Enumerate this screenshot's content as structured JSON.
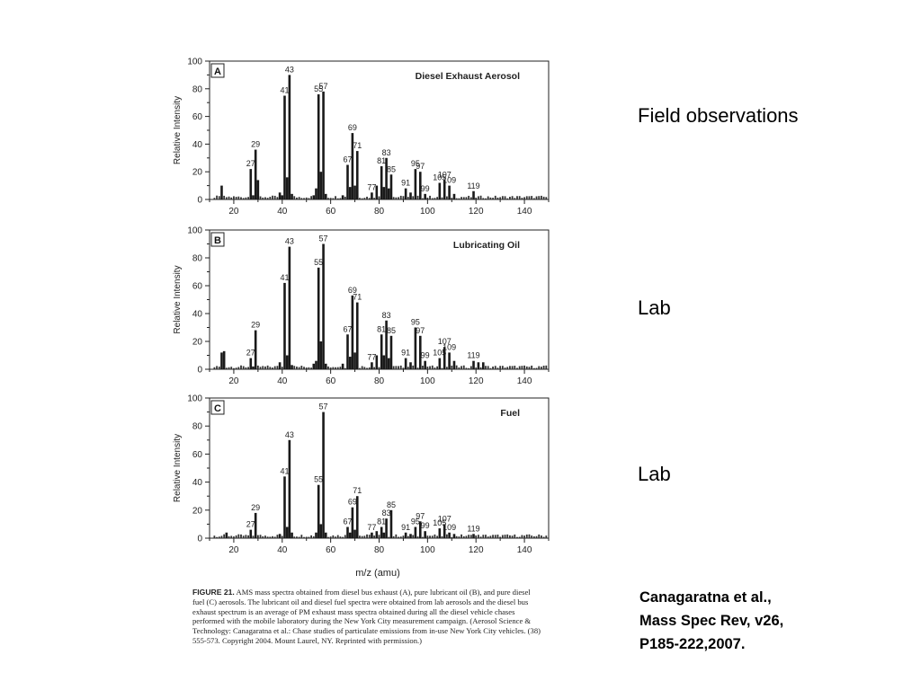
{
  "slide": {
    "side_labels": {
      "panel_a": "Field observations",
      "panel_b": "Lab",
      "panel_c": "Lab"
    },
    "citation_lines": [
      "Canagaratna et al.,",
      "Mass Spec Rev, v26,",
      "P185-222,2007."
    ]
  },
  "figure": {
    "caption_lead": "FIGURE 21.",
    "caption_body": "AMS mass spectra obtained from diesel bus exhaust (A), pure lubricant oil (B), and pure diesel fuel (C) aerosols. The lubricant oil and diesel fuel spectra were obtained from lab aerosols and the diesel bus exhaust spectrum is an average of PM exhaust mass spectra obtained during all the diesel vehicle chases performed with the mobile laboratory during the New York City measurement campaign. (Aerosol Science & Technology: Canagaratna et al.: Chase studies of particulate emissions from in-use New York City vehicles. (38) 555-573. Copyright 2004. Mount Laurel, NY. Reprinted with permission.)",
    "xlabel": "m/z (amu)"
  },
  "chart_data": [
    {
      "type": "bar",
      "panel": "A",
      "title": "Diesel Exhaust Aerosol",
      "ylabel": "Relative Intensity",
      "xlim": [
        10,
        150
      ],
      "ylim": [
        0,
        100
      ],
      "xticks": [
        20,
        40,
        60,
        80,
        100,
        120,
        140
      ],
      "yticks": [
        0,
        20,
        40,
        60,
        80,
        100
      ],
      "peaks": [
        {
          "mz": 15,
          "value": 10
        },
        {
          "mz": 27,
          "value": 22,
          "label": "27"
        },
        {
          "mz": 28,
          "value": 3
        },
        {
          "mz": 29,
          "value": 36,
          "label": "29"
        },
        {
          "mz": 30,
          "value": 14
        },
        {
          "mz": 39,
          "value": 5
        },
        {
          "mz": 40,
          "value": 3
        },
        {
          "mz": 41,
          "value": 75,
          "label": "41"
        },
        {
          "mz": 42,
          "value": 16
        },
        {
          "mz": 43,
          "value": 90,
          "label": "43"
        },
        {
          "mz": 44,
          "value": 4
        },
        {
          "mz": 53,
          "value": 3
        },
        {
          "mz": 54,
          "value": 8
        },
        {
          "mz": 55,
          "value": 76,
          "label": "55"
        },
        {
          "mz": 56,
          "value": 20
        },
        {
          "mz": 57,
          "value": 78,
          "label": "57"
        },
        {
          "mz": 58,
          "value": 4
        },
        {
          "mz": 65,
          "value": 3
        },
        {
          "mz": 67,
          "value": 25,
          "label": "67"
        },
        {
          "mz": 68,
          "value": 9
        },
        {
          "mz": 69,
          "value": 48,
          "label": "69"
        },
        {
          "mz": 70,
          "value": 10
        },
        {
          "mz": 71,
          "value": 35,
          "label": "71"
        },
        {
          "mz": 77,
          "value": 5,
          "label": "77"
        },
        {
          "mz": 79,
          "value": 10
        },
        {
          "mz": 81,
          "value": 24,
          "label": "81"
        },
        {
          "mz": 82,
          "value": 9
        },
        {
          "mz": 83,
          "value": 30,
          "label": "83"
        },
        {
          "mz": 84,
          "value": 8
        },
        {
          "mz": 85,
          "value": 18,
          "label": "85"
        },
        {
          "mz": 91,
          "value": 8,
          "label": "91"
        },
        {
          "mz": 93,
          "value": 5
        },
        {
          "mz": 95,
          "value": 22,
          "label": "95"
        },
        {
          "mz": 97,
          "value": 20,
          "label": "97"
        },
        {
          "mz": 99,
          "value": 4,
          "label": "99"
        },
        {
          "mz": 105,
          "value": 12,
          "label": "105"
        },
        {
          "mz": 107,
          "value": 14,
          "label": "107"
        },
        {
          "mz": 109,
          "value": 10,
          "label": "109"
        },
        {
          "mz": 111,
          "value": 4
        },
        {
          "mz": 119,
          "value": 6,
          "label": "119"
        }
      ]
    },
    {
      "type": "bar",
      "panel": "B",
      "title": "Lubricating Oil",
      "ylabel": "Relative Intensity",
      "xlim": [
        10,
        150
      ],
      "ylim": [
        0,
        100
      ],
      "xticks": [
        20,
        40,
        60,
        80,
        100,
        120,
        140
      ],
      "yticks": [
        0,
        20,
        40,
        60,
        80,
        100
      ],
      "peaks": [
        {
          "mz": 15,
          "value": 12
        },
        {
          "mz": 16,
          "value": 13
        },
        {
          "mz": 27,
          "value": 8,
          "label": "27"
        },
        {
          "mz": 28,
          "value": 2
        },
        {
          "mz": 29,
          "value": 28,
          "label": "29"
        },
        {
          "mz": 39,
          "value": 5
        },
        {
          "mz": 41,
          "value": 62,
          "label": "41"
        },
        {
          "mz": 42,
          "value": 10
        },
        {
          "mz": 43,
          "value": 88,
          "label": "43"
        },
        {
          "mz": 44,
          "value": 3
        },
        {
          "mz": 53,
          "value": 4
        },
        {
          "mz": 54,
          "value": 6
        },
        {
          "mz": 55,
          "value": 73,
          "label": "55"
        },
        {
          "mz": 56,
          "value": 20
        },
        {
          "mz": 57,
          "value": 90,
          "label": "57"
        },
        {
          "mz": 58,
          "value": 4
        },
        {
          "mz": 65,
          "value": 4
        },
        {
          "mz": 67,
          "value": 25,
          "label": "67"
        },
        {
          "mz": 68,
          "value": 9
        },
        {
          "mz": 69,
          "value": 53,
          "label": "69"
        },
        {
          "mz": 70,
          "value": 12
        },
        {
          "mz": 71,
          "value": 48,
          "label": "71"
        },
        {
          "mz": 77,
          "value": 5,
          "label": "77"
        },
        {
          "mz": 79,
          "value": 10
        },
        {
          "mz": 81,
          "value": 25,
          "label": "81"
        },
        {
          "mz": 82,
          "value": 10
        },
        {
          "mz": 83,
          "value": 35,
          "label": "83"
        },
        {
          "mz": 84,
          "value": 8
        },
        {
          "mz": 85,
          "value": 24,
          "label": "85"
        },
        {
          "mz": 91,
          "value": 8,
          "label": "91"
        },
        {
          "mz": 93,
          "value": 5
        },
        {
          "mz": 95,
          "value": 30,
          "label": "95"
        },
        {
          "mz": 97,
          "value": 24,
          "label": "97"
        },
        {
          "mz": 99,
          "value": 6,
          "label": "99"
        },
        {
          "mz": 105,
          "value": 8,
          "label": "105"
        },
        {
          "mz": 107,
          "value": 16,
          "label": "107"
        },
        {
          "mz": 109,
          "value": 12,
          "label": "109"
        },
        {
          "mz": 111,
          "value": 6
        },
        {
          "mz": 119,
          "value": 6,
          "label": "119"
        },
        {
          "mz": 121,
          "value": 5
        },
        {
          "mz": 123,
          "value": 5
        }
      ]
    },
    {
      "type": "bar",
      "panel": "C",
      "title": "Fuel",
      "ylabel": "Relative Intensity",
      "xlim": [
        10,
        150
      ],
      "ylim": [
        0,
        100
      ],
      "xticks": [
        20,
        40,
        60,
        80,
        100,
        120,
        140
      ],
      "yticks": [
        0,
        20,
        40,
        60,
        80,
        100
      ],
      "peaks": [
        {
          "mz": 17,
          "value": 4
        },
        {
          "mz": 27,
          "value": 6,
          "label": "27"
        },
        {
          "mz": 29,
          "value": 18,
          "label": "29"
        },
        {
          "mz": 39,
          "value": 3
        },
        {
          "mz": 41,
          "value": 44,
          "label": "41"
        },
        {
          "mz": 42,
          "value": 8
        },
        {
          "mz": 43,
          "value": 70,
          "label": "43"
        },
        {
          "mz": 44,
          "value": 4
        },
        {
          "mz": 54,
          "value": 4
        },
        {
          "mz": 55,
          "value": 38,
          "label": "55"
        },
        {
          "mz": 56,
          "value": 10
        },
        {
          "mz": 57,
          "value": 90,
          "label": "57"
        },
        {
          "mz": 58,
          "value": 4
        },
        {
          "mz": 67,
          "value": 8,
          "label": "67"
        },
        {
          "mz": 68,
          "value": 4
        },
        {
          "mz": 69,
          "value": 22,
          "label": "69"
        },
        {
          "mz": 70,
          "value": 6
        },
        {
          "mz": 71,
          "value": 30,
          "label": "71"
        },
        {
          "mz": 77,
          "value": 4,
          "label": "77"
        },
        {
          "mz": 79,
          "value": 5
        },
        {
          "mz": 81,
          "value": 8,
          "label": "81"
        },
        {
          "mz": 82,
          "value": 4
        },
        {
          "mz": 83,
          "value": 14,
          "label": "83"
        },
        {
          "mz": 85,
          "value": 20,
          "label": "85"
        },
        {
          "mz": 91,
          "value": 4,
          "label": "91"
        },
        {
          "mz": 93,
          "value": 3
        },
        {
          "mz": 95,
          "value": 8,
          "label": "95"
        },
        {
          "mz": 97,
          "value": 12,
          "label": "97"
        },
        {
          "mz": 99,
          "value": 5,
          "label": "99"
        },
        {
          "mz": 105,
          "value": 7,
          "label": "105"
        },
        {
          "mz": 107,
          "value": 10,
          "label": "107"
        },
        {
          "mz": 109,
          "value": 4,
          "label": "109"
        },
        {
          "mz": 111,
          "value": 3
        },
        {
          "mz": 119,
          "value": 3,
          "label": "119"
        }
      ]
    }
  ]
}
